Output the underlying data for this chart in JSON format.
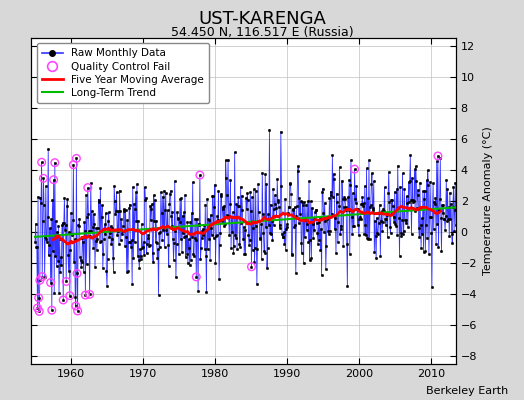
{
  "title": "UST-KARENGA",
  "subtitle": "54.450 N, 116.517 E (Russia)",
  "attribution": "Berkeley Earth",
  "ylabel": "Temperature Anomaly (°C)",
  "xlim": [
    1954.5,
    2013.5
  ],
  "ylim": [
    -8.5,
    12.5
  ],
  "yticks": [
    -8,
    -6,
    -4,
    -2,
    0,
    2,
    4,
    6,
    8,
    10,
    12
  ],
  "xticks": [
    1960,
    1970,
    1980,
    1990,
    2000,
    2010
  ],
  "bg_color": "#d8d8d8",
  "plot_bg_color": "#ffffff",
  "raw_color": "#3333ff",
  "qc_color": "#ff44ff",
  "moving_avg_color": "#ff0000",
  "trend_color": "#00bb00",
  "title_fontsize": 13,
  "subtitle_fontsize": 9,
  "tick_fontsize": 8,
  "legend_fontsize": 7.5,
  "ylabel_fontsize": 8,
  "seed": 12345
}
